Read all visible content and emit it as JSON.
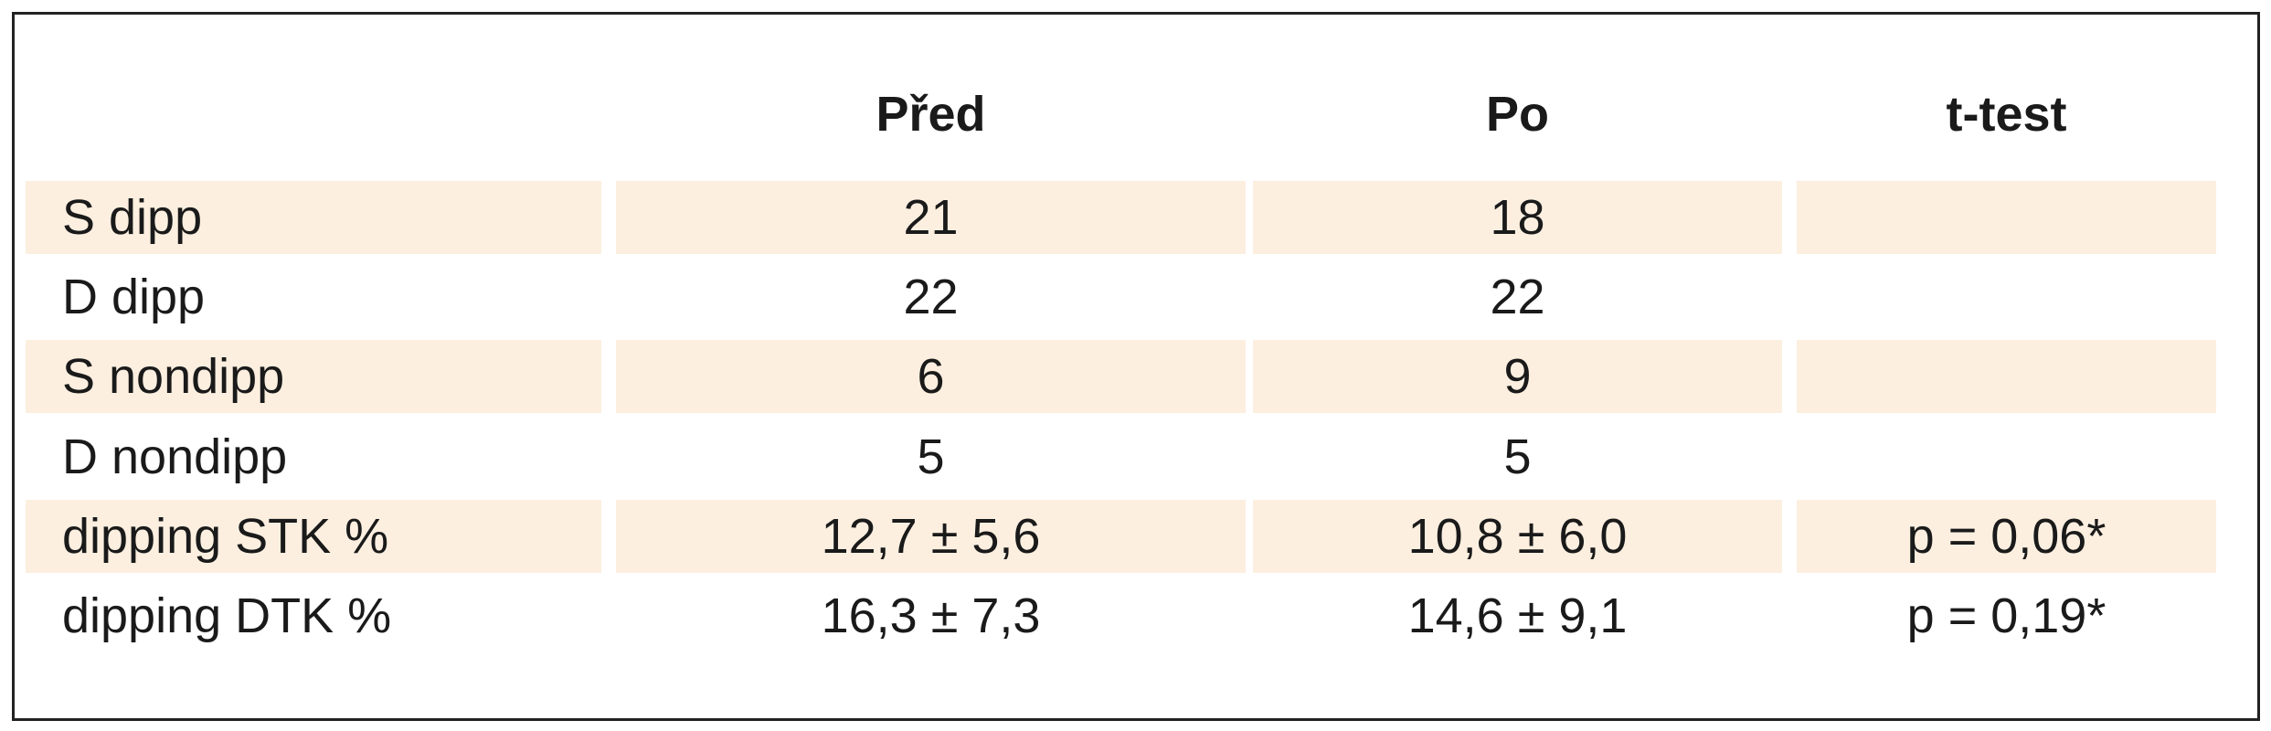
{
  "table": {
    "columns": [
      "Před",
      "Po",
      "t-test"
    ],
    "rows": [
      {
        "label": "S dipp",
        "cells": [
          "21",
          "18"
        ]
      },
      {
        "label": "D dipp",
        "cells": [
          "22",
          "22"
        ]
      },
      {
        "label": "S nondipp",
        "cells": [
          "6",
          "9"
        ]
      },
      {
        "label": "D nondipp",
        "cells": [
          "5",
          "5"
        ]
      },
      {
        "label": "dipping STK %",
        "cells": [
          "12,7 ± 5,6",
          "10,8 ± 6,0",
          "p = 0,06*"
        ]
      },
      {
        "label": "dipping DTK %",
        "cells": [
          "16,3 ± 7,3",
          "14,6 ± 9,1",
          "p = 0,19*"
        ]
      }
    ]
  }
}
